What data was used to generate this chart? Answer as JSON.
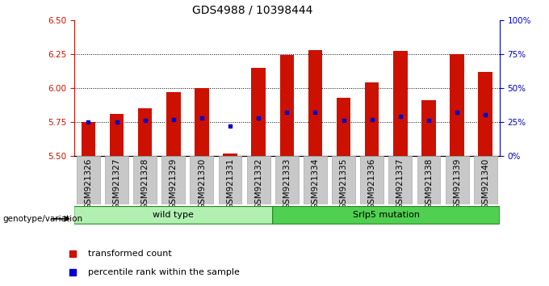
{
  "title": "GDS4988 / 10398444",
  "samples": [
    "GSM921326",
    "GSM921327",
    "GSM921328",
    "GSM921329",
    "GSM921330",
    "GSM921331",
    "GSM921332",
    "GSM921333",
    "GSM921334",
    "GSM921335",
    "GSM921336",
    "GSM921337",
    "GSM921338",
    "GSM921339",
    "GSM921340"
  ],
  "red_values": [
    5.75,
    5.81,
    5.85,
    5.97,
    6.0,
    5.52,
    6.15,
    6.24,
    6.28,
    5.93,
    6.04,
    6.27,
    5.91,
    6.25,
    6.12
  ],
  "blue_values": [
    5.75,
    5.75,
    5.76,
    5.77,
    5.78,
    5.72,
    5.78,
    5.82,
    5.82,
    5.76,
    5.77,
    5.79,
    5.76,
    5.82,
    5.8
  ],
  "y_min": 5.5,
  "y_max": 6.5,
  "y_ticks": [
    5.5,
    5.75,
    6.0,
    6.25,
    6.5
  ],
  "right_y_ticks": [
    0,
    25,
    50,
    75,
    100
  ],
  "right_y_labels": [
    "0%",
    "25%",
    "50%",
    "75%",
    "100%"
  ],
  "groups": [
    {
      "label": "wild type",
      "start": 0,
      "end": 7,
      "color": "#b2f0b2"
    },
    {
      "label": "Srlp5 mutation",
      "start": 7,
      "end": 15,
      "color": "#50d050"
    }
  ],
  "bar_color": "#cc1100",
  "dot_color": "#0000cc",
  "bar_bottom": 5.5,
  "left_axis_color": "#cc1100",
  "right_axis_color": "#0000cc",
  "legend_items": [
    {
      "label": "transformed count",
      "color": "#cc1100"
    },
    {
      "label": "percentile rank within the sample",
      "color": "#0000cc"
    }
  ],
  "title_fontsize": 10,
  "tick_fontsize": 7.5,
  "label_fontsize": 7.5,
  "bar_width": 0.5,
  "grid_lines": [
    5.75,
    6.0,
    6.25
  ],
  "tick_bg_color": "#c8c8c8"
}
